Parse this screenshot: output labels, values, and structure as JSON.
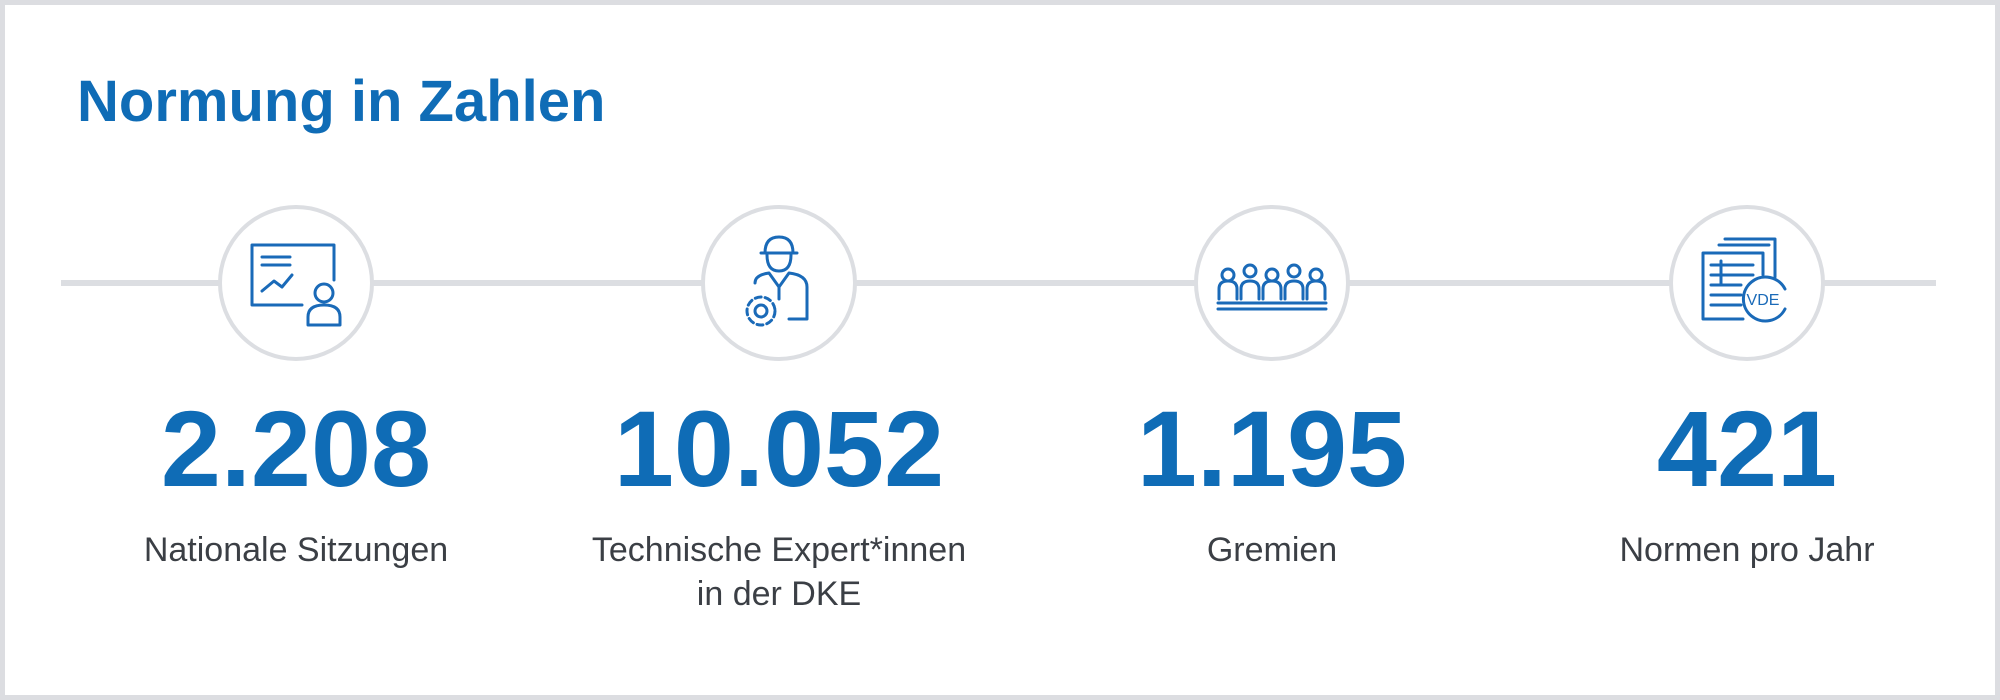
{
  "header": {
    "title": "Normung in Zahlen"
  },
  "items": [
    {
      "value": "2.208",
      "label": [
        "Nationale Sitzungen"
      ]
    },
    {
      "value": "10.052",
      "label": [
        "Technische Expert*innen",
        "in der DKE"
      ]
    },
    {
      "value": "1.195",
      "label": [
        "Gremien"
      ]
    },
    {
      "value": "421",
      "label": [
        "Normen pro Jahr"
      ],
      "icon_text": "VDE"
    }
  ]
}
